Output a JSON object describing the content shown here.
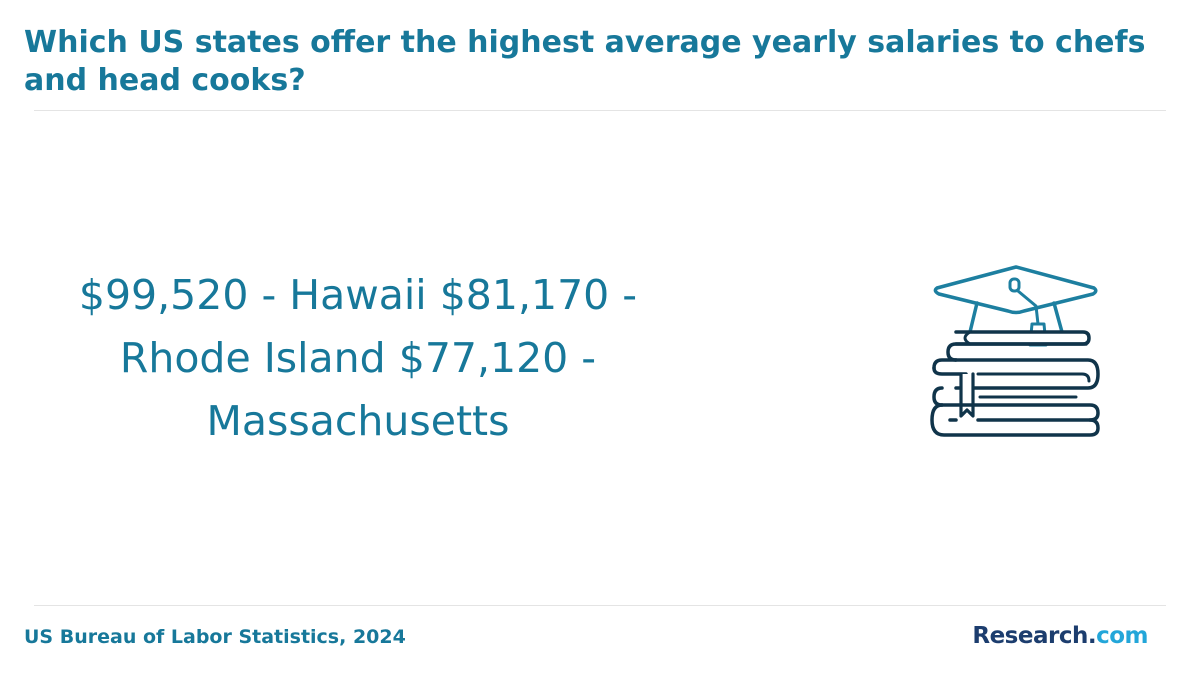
{
  "header": {
    "title": "Which US states offer the highest average yearly salaries to chefs and head cooks?"
  },
  "main": {
    "stat_text": "$99,520 - Hawaii $81,170 - Rhode Island $77,120 - Massachusetts",
    "illustration_icon": "graduation-cap-on-books-icon"
  },
  "footer": {
    "source": "US Bureau of Labor Statistics, 2024",
    "brand": {
      "name": "Research",
      "dot": ".",
      "tld": "com"
    }
  },
  "colors": {
    "title": "#17789a",
    "icon_dark": "#10344a",
    "icon_accent": "#1d7fa0",
    "brand_dark": "#1c3d6e",
    "brand_light": "#23a6d9"
  }
}
